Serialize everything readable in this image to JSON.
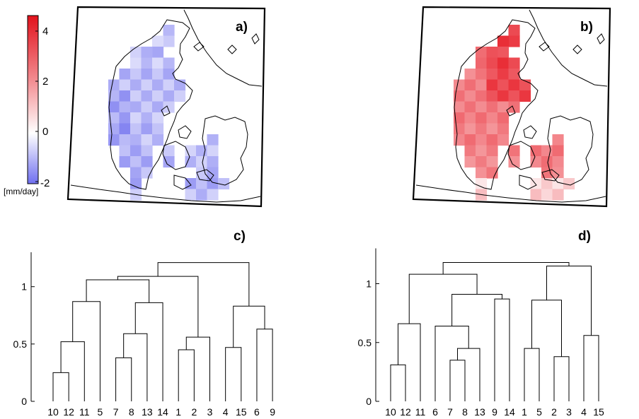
{
  "colorbar": {
    "ticks": [
      "4",
      "2",
      "0",
      "-2"
    ],
    "unit_label": "[mm/day]",
    "range": [
      -2,
      4.5
    ],
    "colors": {
      "positive": "#e8222b",
      "zero": "#ffffff",
      "negative": "#7070e8"
    }
  },
  "maps": [
    {
      "label": "a)",
      "field": "negative-bias"
    },
    {
      "label": "b)",
      "field": "positive-bias"
    }
  ],
  "chart_data": [
    {
      "type": "dendrogram",
      "label": "c)",
      "ylim": [
        0,
        1.3
      ],
      "yticks": [
        "0",
        "0.5",
        "1"
      ],
      "leaf_order": [
        "10",
        "12",
        "11",
        "5",
        "7",
        "8",
        "13",
        "14",
        "1",
        "2",
        "3",
        "4",
        "15",
        "6",
        "9"
      ],
      "merges": [
        {
          "a": "10",
          "b": "12",
          "height": 0.25
        },
        {
          "a": "7",
          "b": "8",
          "height": 0.38
        },
        {
          "a": "1",
          "b": "2",
          "height": 0.45
        },
        {
          "a": "4",
          "b": "15",
          "height": 0.47
        },
        {
          "a": "{10,12}",
          "b": "11",
          "height": 0.52
        },
        {
          "a": "{1,2}",
          "b": "3",
          "height": 0.56
        },
        {
          "a": "{7,8}",
          "b": "13",
          "height": 0.59
        },
        {
          "a": "6",
          "b": "9",
          "height": 0.63
        },
        {
          "a": "{4,15}",
          "b": "{6,9}",
          "height": 0.83
        },
        {
          "a": "{7,8,13}",
          "b": "14",
          "height": 0.86
        },
        {
          "a": "{10,12,11}",
          "b": "5",
          "height": 0.87
        },
        {
          "a": "{10,12,11,5}",
          "b": "{7,8,13,14}",
          "height": 1.06
        },
        {
          "a": "{10..14}",
          "b": "{1,2,3}",
          "height": 1.09
        },
        {
          "a": "{10..3}",
          "b": "{4,15,6,9}",
          "height": 1.21
        }
      ]
    },
    {
      "type": "dendrogram",
      "label": "d)",
      "ylim": [
        0,
        1.3
      ],
      "yticks": [
        "0",
        "0.5",
        "1"
      ],
      "leaf_order": [
        "10",
        "12",
        "11",
        "6",
        "7",
        "8",
        "13",
        "9",
        "14",
        "1",
        "5",
        "2",
        "3",
        "4",
        "15"
      ],
      "merges": [
        {
          "a": "10",
          "b": "12",
          "height": 0.31
        },
        {
          "a": "7",
          "b": "8",
          "height": 0.35
        },
        {
          "a": "2",
          "b": "3",
          "height": 0.38
        },
        {
          "a": "1",
          "b": "5",
          "height": 0.45
        },
        {
          "a": "{7,8}",
          "b": "13",
          "height": 0.45
        },
        {
          "a": "4",
          "b": "15",
          "height": 0.56
        },
        {
          "a": "6",
          "b": "{7,8,13}",
          "height": 0.64
        },
        {
          "a": "{10,12}",
          "b": "11",
          "height": 0.66
        },
        {
          "a": "{1,5}",
          "b": "{2,3}",
          "height": 0.86
        },
        {
          "a": "9",
          "b": "14",
          "height": 0.87
        },
        {
          "a": "{6,7,8,13}",
          "b": "{9,14}",
          "height": 0.91
        },
        {
          "a": "{10,12,11}",
          "b": "{6..14}",
          "height": 1.08
        },
        {
          "a": "{1,5,2,3}",
          "b": "{4,15}",
          "height": 1.15
        },
        {
          "a": "{10..14}",
          "b": "{1..15}",
          "height": 1.18
        }
      ]
    }
  ]
}
